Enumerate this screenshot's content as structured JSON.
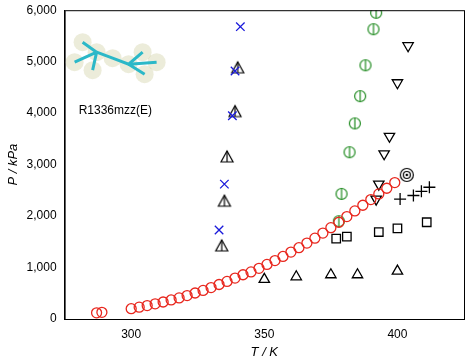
{
  "chart_data": {
    "type": "scatter",
    "x_label": "T / K",
    "y_label": "P / kPa",
    "annotation": "R1336mzz(E)",
    "xlim": [
      275,
      425
    ],
    "xticks": [
      300,
      350,
      400
    ],
    "ylim": [
      0,
      6000
    ],
    "yticks": [
      0,
      1000,
      2000,
      3000,
      4000,
      5000,
      6000
    ],
    "grid": false,
    "series": [
      {
        "color": "#e8271e",
        "marker": "circle",
        "x": [
          287,
          289,
          300,
          303,
          306,
          309,
          312,
          315,
          318,
          321,
          324,
          327,
          330,
          333,
          336,
          339,
          342,
          345,
          348,
          351,
          354,
          357,
          360,
          363,
          366,
          369,
          372,
          375,
          378,
          381,
          384,
          387,
          390,
          393,
          396,
          399
        ],
        "values": [
          120,
          130,
          200,
          230,
          260,
          295,
          330,
          370,
          410,
          455,
          505,
          555,
          610,
          670,
          730,
          795,
          860,
          915,
          985,
          1060,
          1135,
          1215,
          1300,
          1385,
          1475,
          1570,
          1670,
          1775,
          1880,
          1990,
          2100,
          2210,
          2320,
          2430,
          2540,
          2650
        ]
      },
      {
        "color": "#000000",
        "marker": "circle_dot",
        "x": [
          403.5
        ],
        "values": [
          2800
        ]
      },
      {
        "color": "#1a1adb",
        "marker": "x",
        "x": [
          333,
          335,
          338,
          339,
          341
        ],
        "values": [
          1730,
          2620,
          3950,
          4820,
          5680
        ]
      },
      {
        "color": "#000000",
        "marker": "triangle_bar",
        "x": [
          334,
          335,
          336,
          339,
          340
        ],
        "values": [
          1420,
          2290,
          3150,
          4030,
          4880
        ]
      },
      {
        "color": "#1e8a1e",
        "marker": "circle_bar",
        "x": [
          378,
          379,
          382,
          384,
          386,
          388,
          391,
          392
        ],
        "values": [
          1900,
          2430,
          3240,
          3800,
          4330,
          4930,
          5630,
          5950
        ]
      },
      {
        "color": "#000000",
        "marker": "triangle_down",
        "x": [
          392,
          393,
          395,
          397,
          400,
          404
        ],
        "values": [
          2330,
          2620,
          3210,
          3550,
          4590,
          5310
        ]
      },
      {
        "color": "#000000",
        "marker": "plus",
        "x": [
          401,
          406,
          409,
          412
        ],
        "values": [
          2330,
          2400,
          2480,
          2560
        ]
      },
      {
        "color": "#000000",
        "marker": "square",
        "x": [
          377,
          381,
          393,
          400,
          411
        ],
        "values": [
          1560,
          1600,
          1690,
          1760,
          1880
        ]
      },
      {
        "color": "#000000",
        "marker": "triangle",
        "x": [
          350,
          362,
          375,
          385,
          400
        ],
        "values": [
          770,
          820,
          860,
          860,
          930
        ]
      }
    ]
  }
}
